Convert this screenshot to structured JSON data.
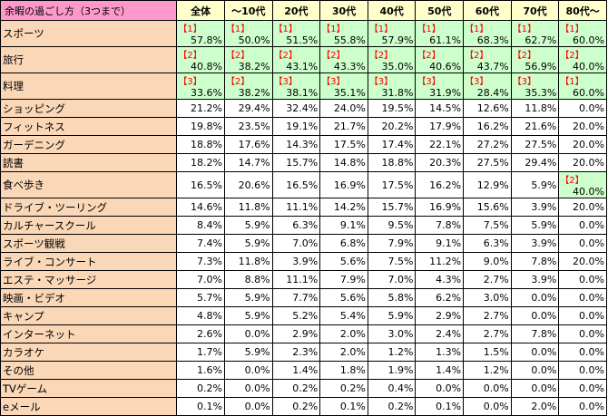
{
  "corner_label": "余暇の過ごし方（3つまで）",
  "columns": [
    "全体",
    "～10代",
    "20代",
    "30代",
    "40代",
    "50代",
    "60代",
    "70代",
    "80代～"
  ],
  "rows": [
    {
      "label": "スポーツ",
      "cells": [
        {
          "rank": "【1】",
          "value": "57.8%"
        },
        {
          "rank": "【1】",
          "value": "50.0%"
        },
        {
          "rank": "【1】",
          "value": "51.5%"
        },
        {
          "rank": "【1】",
          "value": "55.8%"
        },
        {
          "rank": "【1】",
          "value": "57.9%"
        },
        {
          "rank": "【1】",
          "value": "61.1%"
        },
        {
          "rank": "【1】",
          "value": "68.3%"
        },
        {
          "rank": "【1】",
          "value": "62.7%"
        },
        {
          "rank": "【1】",
          "value": "60.0%"
        }
      ]
    },
    {
      "label": "旅行",
      "cells": [
        {
          "rank": "【2】",
          "value": "40.8%"
        },
        {
          "rank": "【2】",
          "value": "38.2%"
        },
        {
          "rank": "【2】",
          "value": "43.1%"
        },
        {
          "rank": "【2】",
          "value": "43.3%"
        },
        {
          "rank": "【2】",
          "value": "35.0%"
        },
        {
          "rank": "【2】",
          "value": "40.6%"
        },
        {
          "rank": "【2】",
          "value": "43.7%"
        },
        {
          "rank": "【2】",
          "value": "56.9%"
        },
        {
          "rank": "【2】",
          "value": "40.0%"
        }
      ]
    },
    {
      "label": "料理",
      "cells": [
        {
          "rank": "【3】",
          "value": "33.6%"
        },
        {
          "rank": "【2】",
          "value": "38.2%"
        },
        {
          "rank": "【3】",
          "value": "38.1%"
        },
        {
          "rank": "【3】",
          "value": "35.1%"
        },
        {
          "rank": "【3】",
          "value": "31.8%"
        },
        {
          "rank": "【3】",
          "value": "31.9%"
        },
        {
          "rank": "【3】",
          "value": "28.4%"
        },
        {
          "rank": "【3】",
          "value": "35.3%"
        },
        {
          "rank": "【1】",
          "value": "60.0%"
        }
      ]
    },
    {
      "label": "ショッピング",
      "cells": [
        {
          "value": "21.2%"
        },
        {
          "value": "29.4%"
        },
        {
          "value": "32.4%"
        },
        {
          "value": "24.0%"
        },
        {
          "value": "19.5%"
        },
        {
          "value": "14.5%"
        },
        {
          "value": "12.6%"
        },
        {
          "value": "11.8%"
        },
        {
          "value": "0.0%"
        }
      ]
    },
    {
      "label": "フィットネス",
      "cells": [
        {
          "value": "19.8%"
        },
        {
          "value": "23.5%"
        },
        {
          "value": "19.1%"
        },
        {
          "value": "21.7%"
        },
        {
          "value": "20.2%"
        },
        {
          "value": "17.9%"
        },
        {
          "value": "16.2%"
        },
        {
          "value": "21.6%"
        },
        {
          "value": "20.0%"
        }
      ]
    },
    {
      "label": "ガーデニング",
      "cells": [
        {
          "value": "18.8%"
        },
        {
          "value": "17.6%"
        },
        {
          "value": "14.3%"
        },
        {
          "value": "17.5%"
        },
        {
          "value": "17.4%"
        },
        {
          "value": "22.1%"
        },
        {
          "value": "27.2%"
        },
        {
          "value": "27.5%"
        },
        {
          "value": "20.0%"
        }
      ]
    },
    {
      "label": "読書",
      "cells": [
        {
          "value": "18.2%"
        },
        {
          "value": "14.7%"
        },
        {
          "value": "15.7%"
        },
        {
          "value": "14.8%"
        },
        {
          "value": "18.8%"
        },
        {
          "value": "20.3%"
        },
        {
          "value": "27.5%"
        },
        {
          "value": "29.4%"
        },
        {
          "value": "20.0%"
        }
      ]
    },
    {
      "label": "食べ歩き",
      "cells": [
        {
          "value": "16.5%"
        },
        {
          "value": "20.6%"
        },
        {
          "value": "16.5%"
        },
        {
          "value": "16.9%"
        },
        {
          "value": "17.5%"
        },
        {
          "value": "16.2%"
        },
        {
          "value": "12.9%"
        },
        {
          "value": "5.9%"
        },
        {
          "rank": "【2】",
          "value": "40.0%"
        }
      ]
    },
    {
      "label": "ドライブ・ツーリング",
      "cells": [
        {
          "value": "14.6%"
        },
        {
          "value": "11.8%"
        },
        {
          "value": "11.1%"
        },
        {
          "value": "14.2%"
        },
        {
          "value": "15.7%"
        },
        {
          "value": "16.9%"
        },
        {
          "value": "15.6%"
        },
        {
          "value": "3.9%"
        },
        {
          "value": "20.0%"
        }
      ]
    },
    {
      "label": "カルチャースクール",
      "cells": [
        {
          "value": "8.4%"
        },
        {
          "value": "5.9%"
        },
        {
          "value": "6.3%"
        },
        {
          "value": "9.1%"
        },
        {
          "value": "9.5%"
        },
        {
          "value": "7.8%"
        },
        {
          "value": "7.5%"
        },
        {
          "value": "5.9%"
        },
        {
          "value": "0.0%"
        }
      ]
    },
    {
      "label": "スポーツ観戦",
      "cells": [
        {
          "value": "7.4%"
        },
        {
          "value": "5.9%"
        },
        {
          "value": "7.0%"
        },
        {
          "value": "6.8%"
        },
        {
          "value": "7.9%"
        },
        {
          "value": "9.1%"
        },
        {
          "value": "6.3%"
        },
        {
          "value": "3.9%"
        },
        {
          "value": "0.0%"
        }
      ]
    },
    {
      "label": "ライブ・コンサート",
      "cells": [
        {
          "value": "7.3%"
        },
        {
          "value": "11.8%"
        },
        {
          "value": "3.9%"
        },
        {
          "value": "5.6%"
        },
        {
          "value": "7.5%"
        },
        {
          "value": "11.2%"
        },
        {
          "value": "9.0%"
        },
        {
          "value": "7.8%"
        },
        {
          "value": "20.0%"
        }
      ]
    },
    {
      "label": "エステ・マッサージ",
      "cells": [
        {
          "value": "7.0%"
        },
        {
          "value": "8.8%"
        },
        {
          "value": "11.1%"
        },
        {
          "value": "7.9%"
        },
        {
          "value": "7.0%"
        },
        {
          "value": "4.3%"
        },
        {
          "value": "2.7%"
        },
        {
          "value": "3.9%"
        },
        {
          "value": "0.0%"
        }
      ]
    },
    {
      "label": "映画・ビデオ",
      "cells": [
        {
          "value": "5.7%"
        },
        {
          "value": "5.9%"
        },
        {
          "value": "7.7%"
        },
        {
          "value": "5.6%"
        },
        {
          "value": "5.8%"
        },
        {
          "value": "6.2%"
        },
        {
          "value": "3.0%"
        },
        {
          "value": "0.0%"
        },
        {
          "value": "0.0%"
        }
      ]
    },
    {
      "label": "キャンプ",
      "cells": [
        {
          "value": "4.8%"
        },
        {
          "value": "5.9%"
        },
        {
          "value": "5.2%"
        },
        {
          "value": "5.4%"
        },
        {
          "value": "5.9%"
        },
        {
          "value": "2.9%"
        },
        {
          "value": "2.7%"
        },
        {
          "value": "0.0%"
        },
        {
          "value": "0.0%"
        }
      ]
    },
    {
      "label": "インターネット",
      "cells": [
        {
          "value": "2.6%"
        },
        {
          "value": "0.0%"
        },
        {
          "value": "2.9%"
        },
        {
          "value": "2.0%"
        },
        {
          "value": "3.0%"
        },
        {
          "value": "2.4%"
        },
        {
          "value": "2.7%"
        },
        {
          "value": "7.8%"
        },
        {
          "value": "0.0%"
        }
      ]
    },
    {
      "label": "カラオケ",
      "cells": [
        {
          "value": "1.7%"
        },
        {
          "value": "5.9%"
        },
        {
          "value": "2.3%"
        },
        {
          "value": "2.0%"
        },
        {
          "value": "1.2%"
        },
        {
          "value": "1.3%"
        },
        {
          "value": "1.5%"
        },
        {
          "value": "0.0%"
        },
        {
          "value": "0.0%"
        }
      ]
    },
    {
      "label": "その他",
      "cells": [
        {
          "value": "1.6%"
        },
        {
          "value": "0.0%"
        },
        {
          "value": "1.4%"
        },
        {
          "value": "1.8%"
        },
        {
          "value": "1.9%"
        },
        {
          "value": "1.4%"
        },
        {
          "value": "1.2%"
        },
        {
          "value": "0.0%"
        },
        {
          "value": "0.0%"
        }
      ]
    },
    {
      "label": "TVゲーム",
      "cells": [
        {
          "value": "0.2%"
        },
        {
          "value": "0.0%"
        },
        {
          "value": "0.2%"
        },
        {
          "value": "0.2%"
        },
        {
          "value": "0.4%"
        },
        {
          "value": "0.0%"
        },
        {
          "value": "0.0%"
        },
        {
          "value": "0.0%"
        },
        {
          "value": "0.0%"
        }
      ]
    },
    {
      "label": "eメール",
      "cells": [
        {
          "value": "0.1%"
        },
        {
          "value": "0.0%"
        },
        {
          "value": "0.2%"
        },
        {
          "value": "0.1%"
        },
        {
          "value": "0.2%"
        },
        {
          "value": "0.1%"
        },
        {
          "value": "0.0%"
        },
        {
          "value": "2.0%"
        },
        {
          "value": "0.0%"
        }
      ]
    }
  ],
  "colors": {
    "corner": "#ff99cc",
    "header": "#ffffcc",
    "label": "#fad7b6",
    "highlight": "#ccffcc",
    "rank": "#ff0000"
  }
}
